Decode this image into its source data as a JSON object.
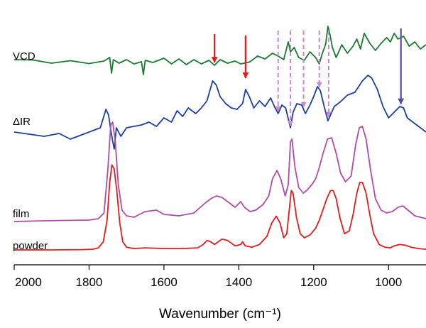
{
  "chart_data": {
    "type": "line",
    "xlabel": "Wavenumber (cm⁻¹)",
    "xlim": [
      2000,
      900
    ],
    "xticks": [
      2000,
      1800,
      1600,
      1400,
      1200,
      1000
    ],
    "yticks_visible": false,
    "grid": false,
    "series": [
      {
        "name": "VCD",
        "color": "#1a7a32",
        "points": [
          [
            2000,
            0.3
          ],
          [
            1950,
            0.25
          ],
          [
            1900,
            -0.2
          ],
          [
            1850,
            0.15
          ],
          [
            1800,
            -0.25
          ],
          [
            1760,
            0.1
          ],
          [
            1745,
            0.6
          ],
          [
            1740,
            -1.6
          ],
          [
            1735,
            0.3
          ],
          [
            1720,
            -0.2
          ],
          [
            1700,
            0.3
          ],
          [
            1680,
            -0.3
          ],
          [
            1660,
            0.0
          ],
          [
            1655,
            -1.8
          ],
          [
            1650,
            0.2
          ],
          [
            1630,
            -0.1
          ],
          [
            1600,
            0.5
          ],
          [
            1580,
            -0.3
          ],
          [
            1560,
            0.4
          ],
          [
            1540,
            -0.4
          ],
          [
            1520,
            0.3
          ],
          [
            1500,
            -0.3
          ],
          [
            1480,
            0.2
          ],
          [
            1465,
            -0.5
          ],
          [
            1450,
            0.3
          ],
          [
            1430,
            -0.2
          ],
          [
            1410,
            0.1
          ],
          [
            1395,
            -0.3
          ],
          [
            1385,
            -0.2
          ],
          [
            1370,
            0.0
          ],
          [
            1350,
            0.8
          ],
          [
            1330,
            0.4
          ],
          [
            1310,
            1.2
          ],
          [
            1295,
            0.8
          ],
          [
            1280,
            0.3
          ],
          [
            1268,
            2.8
          ],
          [
            1262,
            1.4
          ],
          [
            1252,
            2.0
          ],
          [
            1240,
            0.6
          ],
          [
            1225,
            0.2
          ],
          [
            1210,
            1.4
          ],
          [
            1195,
            0.6
          ],
          [
            1185,
            -0.3
          ],
          [
            1178,
            1.0
          ],
          [
            1168,
            2.5
          ],
          [
            1162,
            5.0
          ],
          [
            1158,
            4.2
          ],
          [
            1150,
            2.0
          ],
          [
            1140,
            0.6
          ],
          [
            1125,
            2.4
          ],
          [
            1110,
            1.2
          ],
          [
            1095,
            2.2
          ],
          [
            1085,
            3.2
          ],
          [
            1075,
            1.8
          ],
          [
            1065,
            4.0
          ],
          [
            1050,
            2.6
          ],
          [
            1035,
            1.6
          ],
          [
            1020,
            2.6
          ],
          [
            1005,
            3.4
          ],
          [
            995,
            2.8
          ],
          [
            985,
            4.0
          ],
          [
            975,
            3.2
          ],
          [
            960,
            3.6
          ],
          [
            945,
            2.2
          ],
          [
            930,
            2.8
          ],
          [
            915,
            1.8
          ],
          [
            900,
            2.4
          ]
        ]
      },
      {
        "name": "ΔIR",
        "color": "#1c3f9e",
        "points": [
          [
            2000,
            0.0
          ],
          [
            1960,
            -0.3
          ],
          [
            1920,
            -0.6
          ],
          [
            1880,
            -0.2
          ],
          [
            1850,
            -1.0
          ],
          [
            1820,
            -0.4
          ],
          [
            1790,
            0.2
          ],
          [
            1770,
            0.6
          ],
          [
            1755,
            3.2
          ],
          [
            1748,
            2.4
          ],
          [
            1740,
            -0.4
          ],
          [
            1733,
            -2.4
          ],
          [
            1727,
            0.6
          ],
          [
            1715,
            -0.6
          ],
          [
            1700,
            0.6
          ],
          [
            1680,
            0.8
          ],
          [
            1660,
            1.0
          ],
          [
            1640,
            1.4
          ],
          [
            1620,
            0.8
          ],
          [
            1600,
            2.0
          ],
          [
            1580,
            1.4
          ],
          [
            1565,
            3.0
          ],
          [
            1550,
            2.2
          ],
          [
            1535,
            3.4
          ],
          [
            1515,
            2.6
          ],
          [
            1500,
            3.4
          ],
          [
            1485,
            4.4
          ],
          [
            1470,
            7.2
          ],
          [
            1460,
            6.6
          ],
          [
            1450,
            5.0
          ],
          [
            1435,
            4.0
          ],
          [
            1420,
            3.4
          ],
          [
            1405,
            3.2
          ],
          [
            1390,
            4.0
          ],
          [
            1382,
            6.0
          ],
          [
            1372,
            5.0
          ],
          [
            1360,
            3.4
          ],
          [
            1345,
            4.4
          ],
          [
            1330,
            3.6
          ],
          [
            1315,
            4.8
          ],
          [
            1305,
            3.6
          ],
          [
            1295,
            2.6
          ],
          [
            1285,
            3.8
          ],
          [
            1275,
            3.4
          ],
          [
            1262,
            0.6
          ],
          [
            1255,
            2.8
          ],
          [
            1245,
            4.0
          ],
          [
            1232,
            3.8
          ],
          [
            1222,
            2.6
          ],
          [
            1210,
            3.8
          ],
          [
            1200,
            5.0
          ],
          [
            1190,
            6.4
          ],
          [
            1182,
            5.8
          ],
          [
            1172,
            3.6
          ],
          [
            1162,
            1.6
          ],
          [
            1155,
            2.4
          ],
          [
            1145,
            3.6
          ],
          [
            1130,
            4.2
          ],
          [
            1110,
            5.2
          ],
          [
            1090,
            5.6
          ],
          [
            1070,
            7.2
          ],
          [
            1055,
            8.0
          ],
          [
            1045,
            7.6
          ],
          [
            1030,
            6.0
          ],
          [
            1015,
            3.6
          ],
          [
            1000,
            2.0
          ],
          [
            985,
            2.8
          ],
          [
            970,
            3.6
          ],
          [
            960,
            3.4
          ],
          [
            950,
            2.0
          ],
          [
            935,
            1.4
          ],
          [
            920,
            0.8
          ],
          [
            905,
            0.2
          ],
          [
            900,
            0.0
          ]
        ]
      },
      {
        "name": "film",
        "color": "#b04ba8",
        "points": [
          [
            2000,
            0.0
          ],
          [
            1920,
            0.05
          ],
          [
            1850,
            0.08
          ],
          [
            1800,
            0.1
          ],
          [
            1775,
            0.2
          ],
          [
            1760,
            0.6
          ],
          [
            1750,
            3.6
          ],
          [
            1742,
            6.8
          ],
          [
            1737,
            7.0
          ],
          [
            1730,
            5.6
          ],
          [
            1722,
            2.6
          ],
          [
            1712,
            0.8
          ],
          [
            1700,
            0.4
          ],
          [
            1680,
            0.3
          ],
          [
            1650,
            0.7
          ],
          [
            1620,
            0.8
          ],
          [
            1600,
            0.5
          ],
          [
            1560,
            0.4
          ],
          [
            1520,
            0.6
          ],
          [
            1490,
            1.3
          ],
          [
            1475,
            1.6
          ],
          [
            1460,
            1.8
          ],
          [
            1445,
            1.7
          ],
          [
            1430,
            1.4
          ],
          [
            1410,
            1.0
          ],
          [
            1395,
            1.4
          ],
          [
            1385,
            1.0
          ],
          [
            1370,
            0.7
          ],
          [
            1355,
            0.8
          ],
          [
            1335,
            1.2
          ],
          [
            1320,
            1.8
          ],
          [
            1310,
            3.0
          ],
          [
            1298,
            3.6
          ],
          [
            1288,
            3.0
          ],
          [
            1276,
            1.8
          ],
          [
            1268,
            2.6
          ],
          [
            1262,
            5.6
          ],
          [
            1258,
            5.8
          ],
          [
            1250,
            3.8
          ],
          [
            1240,
            2.4
          ],
          [
            1228,
            2.0
          ],
          [
            1218,
            2.2
          ],
          [
            1205,
            2.6
          ],
          [
            1195,
            3.0
          ],
          [
            1185,
            3.8
          ],
          [
            1175,
            4.8
          ],
          [
            1163,
            5.8
          ],
          [
            1152,
            5.9
          ],
          [
            1140,
            4.8
          ],
          [
            1128,
            3.4
          ],
          [
            1115,
            2.8
          ],
          [
            1100,
            3.2
          ],
          [
            1088,
            5.4
          ],
          [
            1078,
            6.6
          ],
          [
            1070,
            6.7
          ],
          [
            1060,
            5.8
          ],
          [
            1048,
            3.6
          ],
          [
            1035,
            1.6
          ],
          [
            1020,
            0.8
          ],
          [
            1005,
            0.6
          ],
          [
            990,
            0.7
          ],
          [
            975,
            1.0
          ],
          [
            962,
            1.1
          ],
          [
            948,
            0.8
          ],
          [
            930,
            0.4
          ],
          [
            915,
            0.3
          ],
          [
            900,
            0.2
          ]
        ]
      },
      {
        "name": "powder",
        "color": "#e41a1c",
        "points": [
          [
            2000,
            0.0
          ],
          [
            1900,
            0.0
          ],
          [
            1820,
            0.02
          ],
          [
            1790,
            0.05
          ],
          [
            1775,
            0.15
          ],
          [
            1762,
            0.6
          ],
          [
            1752,
            2.2
          ],
          [
            1745,
            5.0
          ],
          [
            1739,
            6.3
          ],
          [
            1733,
            6.0
          ],
          [
            1726,
            4.4
          ],
          [
            1718,
            2.0
          ],
          [
            1710,
            0.6
          ],
          [
            1700,
            0.2
          ],
          [
            1680,
            0.1
          ],
          [
            1650,
            0.15
          ],
          [
            1600,
            0.1
          ],
          [
            1550,
            0.1
          ],
          [
            1510,
            0.15
          ],
          [
            1495,
            0.4
          ],
          [
            1485,
            0.7
          ],
          [
            1475,
            0.6
          ],
          [
            1465,
            0.4
          ],
          [
            1455,
            0.6
          ],
          [
            1445,
            0.8
          ],
          [
            1430,
            0.7
          ],
          [
            1410,
            0.3
          ],
          [
            1395,
            0.4
          ],
          [
            1390,
            0.6
          ],
          [
            1383,
            0.3
          ],
          [
            1365,
            0.2
          ],
          [
            1345,
            0.4
          ],
          [
            1325,
            1.0
          ],
          [
            1312,
            2.0
          ],
          [
            1300,
            2.5
          ],
          [
            1290,
            2.0
          ],
          [
            1280,
            0.9
          ],
          [
            1272,
            1.2
          ],
          [
            1265,
            3.0
          ],
          [
            1260,
            4.4
          ],
          [
            1255,
            4.2
          ],
          [
            1246,
            2.4
          ],
          [
            1236,
            1.2
          ],
          [
            1225,
            0.9
          ],
          [
            1210,
            1.1
          ],
          [
            1195,
            1.6
          ],
          [
            1185,
            2.2
          ],
          [
            1175,
            3.0
          ],
          [
            1165,
            3.8
          ],
          [
            1155,
            4.4
          ],
          [
            1148,
            4.4
          ],
          [
            1140,
            3.8
          ],
          [
            1130,
            2.4
          ],
          [
            1118,
            1.2
          ],
          [
            1105,
            1.4
          ],
          [
            1095,
            2.6
          ],
          [
            1085,
            4.2
          ],
          [
            1077,
            5.0
          ],
          [
            1070,
            5.0
          ],
          [
            1060,
            4.2
          ],
          [
            1050,
            2.6
          ],
          [
            1040,
            1.2
          ],
          [
            1025,
            0.4
          ],
          [
            1010,
            0.2
          ],
          [
            995,
            0.15
          ],
          [
            985,
            0.3
          ],
          [
            970,
            0.4
          ],
          [
            955,
            0.35
          ],
          [
            940,
            0.2
          ],
          [
            920,
            0.1
          ],
          [
            900,
            0.05
          ]
        ]
      }
    ],
    "annotations": [
      {
        "type": "arrow",
        "style": "solid",
        "color": "#e41a1c",
        "x": 1465,
        "from_series": "VCD",
        "to_series": "ΔIR"
      },
      {
        "type": "arrow",
        "style": "solid",
        "color": "#e41a1c",
        "x": 1382,
        "from_series": "VCD",
        "to_series": "ΔIR"
      },
      {
        "type": "arrow",
        "style": "dashed",
        "color": "#c98acb",
        "x": 1295,
        "from_series": "VCD",
        "to_series": "ΔIR"
      },
      {
        "type": "arrow",
        "style": "dashed",
        "color": "#c98acb",
        "x": 1262,
        "from_series": "VCD",
        "to_series": "ΔIR"
      },
      {
        "type": "arrow",
        "style": "dashed",
        "color": "#c98acb",
        "x": 1227,
        "from_series": "VCD",
        "to_series": "ΔIR"
      },
      {
        "type": "arrow",
        "style": "dashed",
        "color": "#c98acb",
        "x": 1185,
        "from_series": "VCD",
        "to_series": "ΔIR"
      },
      {
        "type": "arrow",
        "style": "dashed",
        "color": "#c98acb",
        "x": 1160,
        "from_series": "VCD",
        "to_series": "ΔIR"
      },
      {
        "type": "arrow",
        "style": "solid",
        "color": "#5a4aa8",
        "x": 967,
        "from_series": "VCD",
        "to_series": "ΔIR"
      }
    ]
  }
}
